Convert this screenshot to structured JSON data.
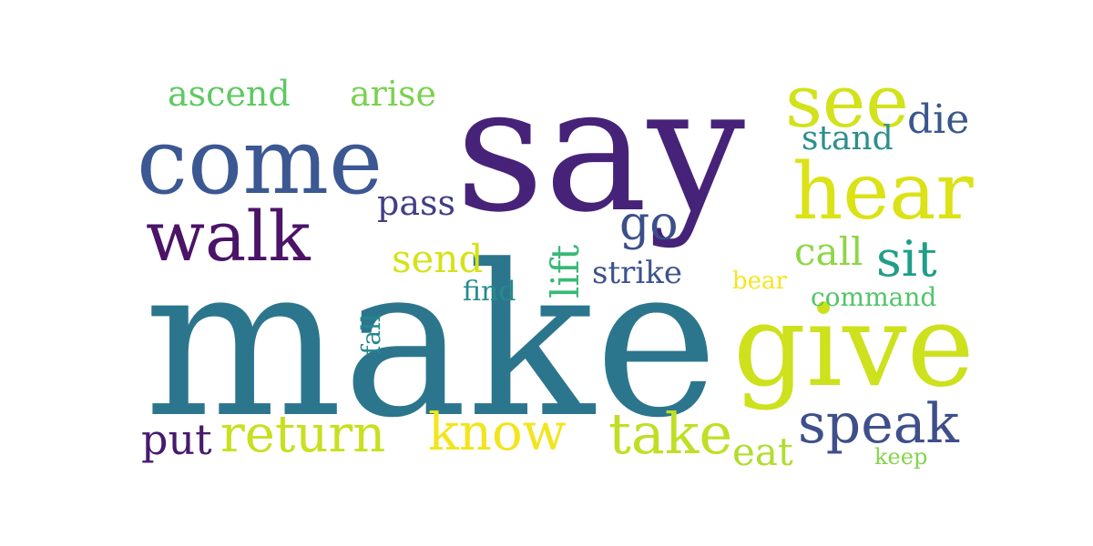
{
  "words": [
    {
      "text": "make",
      "color": "#2c768d"
    },
    {
      "text": "say",
      "color": "#462378"
    },
    {
      "text": "come",
      "color": "#3c5893"
    },
    {
      "text": "give",
      "color": "#cde11d"
    },
    {
      "text": "hear",
      "color": "#dbe215"
    },
    {
      "text": "walk",
      "color": "#4b1467"
    },
    {
      "text": "see",
      "color": "#d2e21b"
    },
    {
      "text": "return",
      "color": "#c8e020"
    },
    {
      "text": "know",
      "color": "#f2e51d"
    },
    {
      "text": "take",
      "color": "#bfdf24"
    },
    {
      "text": "speak",
      "color": "#3e4f8a"
    },
    {
      "text": "sit",
      "color": "#1f9e89"
    },
    {
      "text": "go",
      "color": "#3c4f8a"
    },
    {
      "text": "stand",
      "color": "#2c8f8b"
    },
    {
      "text": "die",
      "color": "#39578c"
    },
    {
      "text": "call",
      "color": "#8ed645"
    },
    {
      "text": "send",
      "color": "#d5e21a"
    },
    {
      "text": "pass",
      "color": "#423e85"
    },
    {
      "text": "arise",
      "color": "#7ad151"
    },
    {
      "text": "ascend",
      "color": "#5ec962"
    },
    {
      "text": "lift",
      "color": "#38b977"
    },
    {
      "text": "strike",
      "color": "#3b528b"
    },
    {
      "text": "put",
      "color": "#471a6e"
    },
    {
      "text": "eat",
      "color": "#b0dd2f"
    },
    {
      "text": "command",
      "color": "#52c569"
    },
    {
      "text": "find",
      "color": "#238a8d"
    },
    {
      "text": "bear",
      "color": "#f4e61e"
    },
    {
      "text": "fall",
      "color": "#23888e"
    },
    {
      "text": "keep",
      "color": "#84d44b"
    }
  ]
}
